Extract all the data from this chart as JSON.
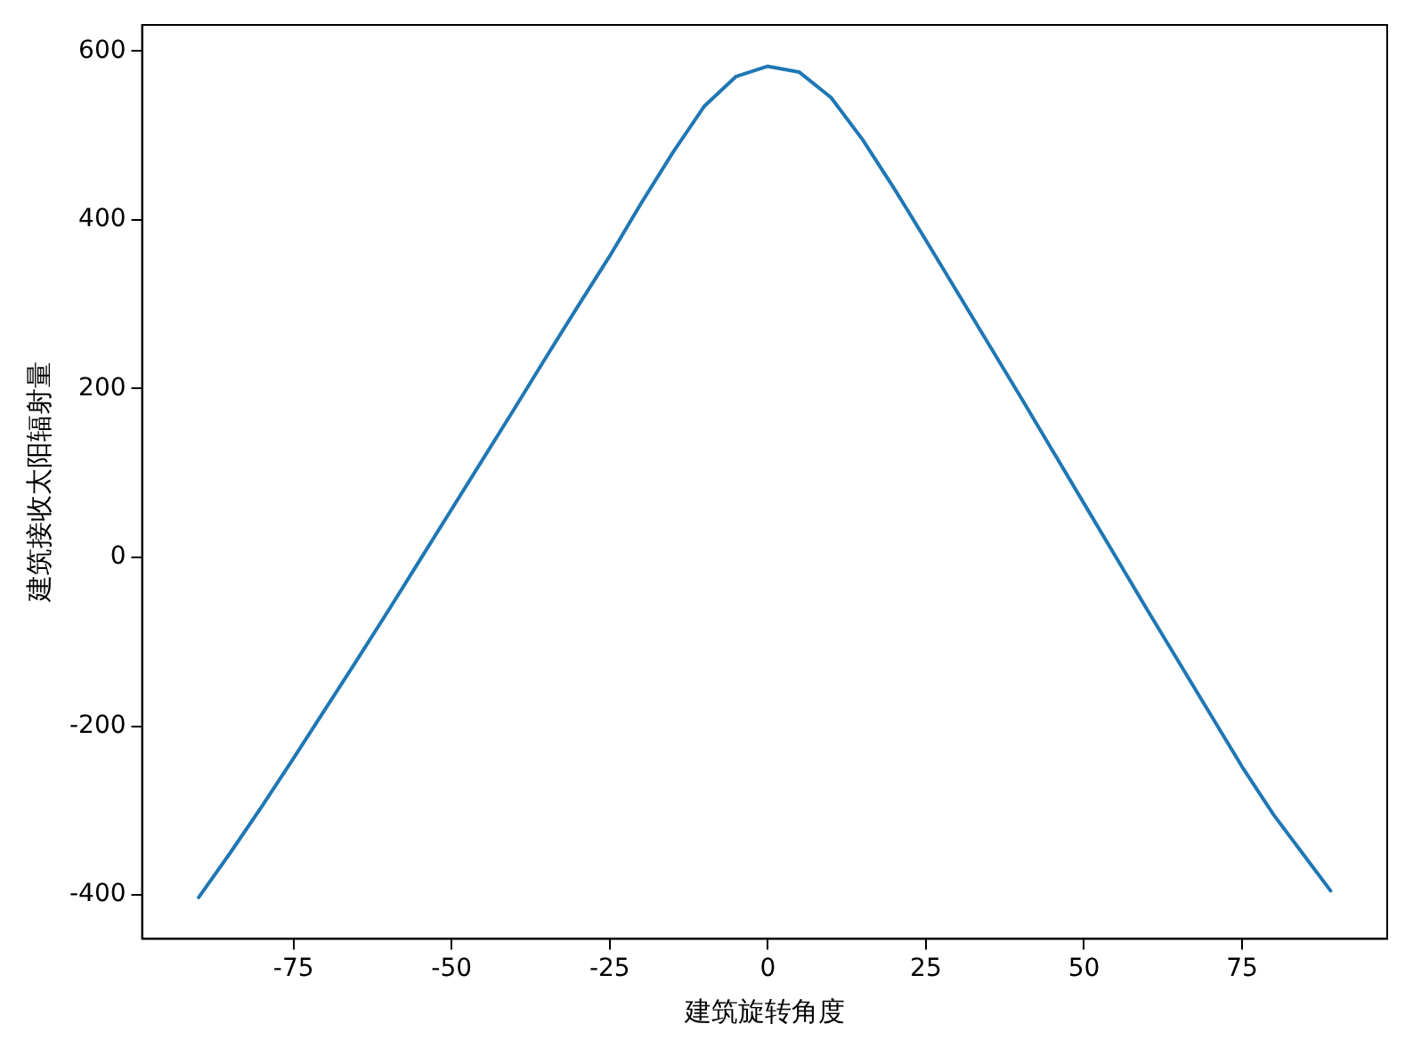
{
  "chart_data": {
    "type": "line",
    "xlabel": "建筑旋转角度",
    "ylabel": "建筑接收太阳辐射量",
    "x": [
      -90,
      -85,
      -80,
      -75,
      -70,
      -65,
      -60,
      -55,
      -50,
      -45,
      -40,
      -35,
      -30,
      -25,
      -20,
      -15,
      -10,
      -5,
      0,
      5,
      10,
      15,
      20,
      25,
      30,
      35,
      40,
      45,
      50,
      55,
      60,
      65,
      70,
      75,
      80,
      85,
      89
    ],
    "series": [
      {
        "color": "#1f77b4",
        "values": [
          -403,
          -350,
          -295,
          -238,
          -180,
          -122,
          -63,
          -3,
          57,
          117,
          177,
          238,
          298,
          357,
          420,
          480,
          535,
          570,
          582,
          575,
          545,
          495,
          437,
          376,
          314,
          252,
          190,
          127,
          64,
          1,
          -62,
          -124,
          -186,
          -248,
          -305,
          -355,
          -395
        ]
      }
    ],
    "xlim": [
      -98.95,
      97.95
    ],
    "xticks": [
      -75,
      -50,
      -25,
      0,
      25,
      50,
      75
    ],
    "ylim": [
      -452,
      631
    ],
    "yticks": [
      -400,
      -200,
      0,
      200,
      400,
      600
    ],
    "grid": false,
    "legend": false,
    "marker": "none",
    "line_style": "solid"
  }
}
